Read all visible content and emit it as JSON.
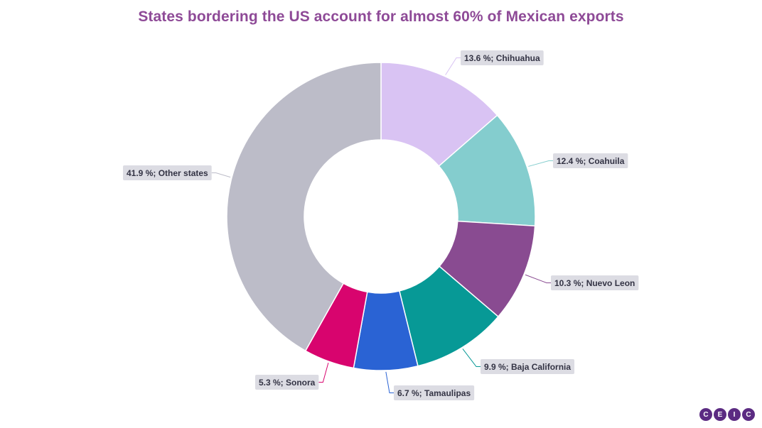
{
  "chart_data": {
    "type": "pie",
    "subtype": "donut",
    "title": "States bordering the US account for almost 60% of Mexican exports",
    "unit": "%",
    "slices": [
      {
        "name": "Chihuahua",
        "value": 13.6,
        "label": "13.6 %; Chihuahua",
        "color": "#d9c3f3"
      },
      {
        "name": "Coahuila",
        "value": 12.4,
        "label": "12.4 %; Coahuila",
        "color": "#84cdce"
      },
      {
        "name": "Nuevo Leon",
        "value": 10.3,
        "label": "10.3 %; Nuevo Leon",
        "color": "#894b91"
      },
      {
        "name": "Baja California",
        "value": 9.9,
        "label": "9.9 %; Baja California",
        "color": "#079996"
      },
      {
        "name": "Tamaulipas",
        "value": 6.7,
        "label": "6.7 %; Tamaulipas",
        "color": "#2a63d4"
      },
      {
        "name": "Sonora",
        "value": 5.3,
        "label": "5.3 %; Sonora",
        "color": "#d8046e"
      },
      {
        "name": "Other states",
        "value": 41.9,
        "label": "41.9 %; Other states",
        "color": "#bcbcc8"
      }
    ],
    "legend": "none"
  },
  "logo": {
    "letters": [
      "C",
      "E",
      "I",
      "C"
    ]
  }
}
